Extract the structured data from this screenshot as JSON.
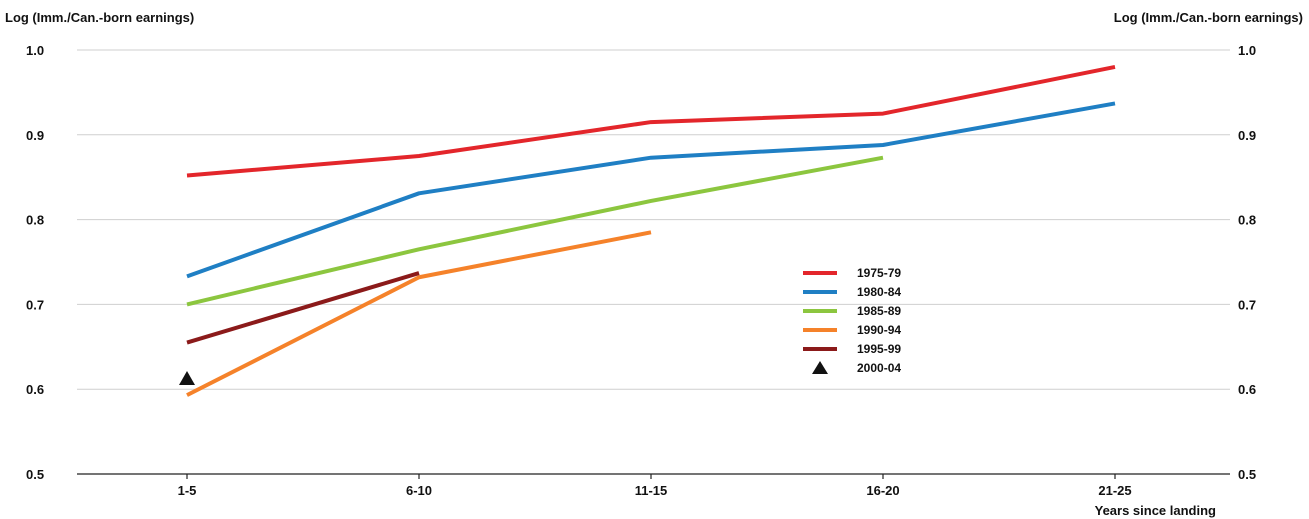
{
  "chart_data": {
    "type": "line",
    "title": "",
    "ylabel_left": "Log (Imm./Can.-born earnings)",
    "ylabel_right": "Log (Imm./Can.-born earnings)",
    "xlabel": "Years since landing",
    "categories": [
      "1-5",
      "6-10",
      "11-15",
      "16-20",
      "21-25"
    ],
    "ylim": [
      0.5,
      1.0
    ],
    "yticks": [
      "0.5",
      "0.6",
      "0.7",
      "0.8",
      "0.9",
      "1.0"
    ],
    "grid": true,
    "legend_position": "center-right",
    "series": [
      {
        "name": "1975-79",
        "color": "#e3262b",
        "marker": "line",
        "values": [
          0.852,
          0.875,
          0.915,
          0.925,
          0.98
        ]
      },
      {
        "name": "1980-84",
        "color": "#1f7fc4",
        "marker": "line",
        "values": [
          0.733,
          0.831,
          0.873,
          0.888,
          0.937
        ]
      },
      {
        "name": "1985-89",
        "color": "#8cc63f",
        "marker": "line",
        "values": [
          0.7,
          0.765,
          0.822,
          0.873,
          null
        ]
      },
      {
        "name": "1990-94",
        "color": "#f5822a",
        "marker": "line",
        "values": [
          0.593,
          0.732,
          0.785,
          null,
          null
        ]
      },
      {
        "name": "1995-99",
        "color": "#8b1a1a",
        "marker": "line",
        "values": [
          0.655,
          0.737,
          null,
          null,
          null
        ]
      },
      {
        "name": "2000-04",
        "color": "#111111",
        "marker": "triangle",
        "values": [
          0.612,
          null,
          null,
          null,
          null
        ]
      }
    ]
  }
}
